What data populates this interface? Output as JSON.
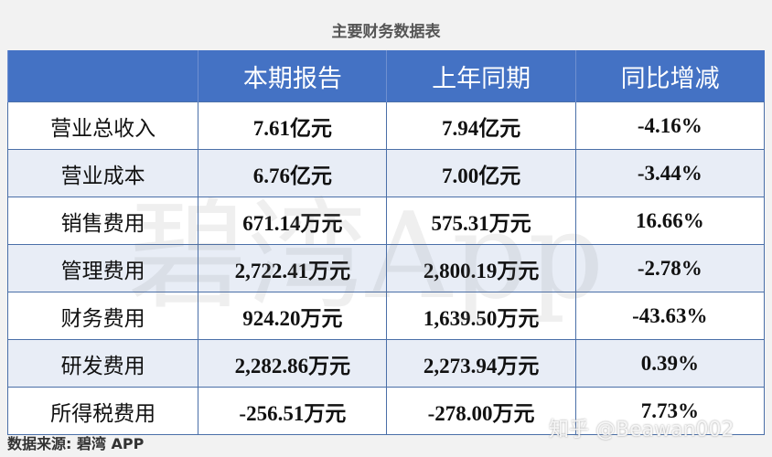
{
  "title": "主要财务数据表",
  "watermark": "碧湾App",
  "table": {
    "headers": [
      "",
      "本期报告",
      "上年同期",
      "同比增减"
    ],
    "rows": [
      [
        "营业总收入",
        "7.61亿元",
        "7.94亿元",
        "-4.16%"
      ],
      [
        "营业成本",
        "6.76亿元",
        "7.00亿元",
        "-3.44%"
      ],
      [
        "销售费用",
        "671.14万元",
        "575.31万元",
        "16.66%"
      ],
      [
        "管理费用",
        "2,722.41万元",
        "2,800.19万元",
        "-2.78%"
      ],
      [
        "财务费用",
        "924.20万元",
        "1,639.50万元",
        "-43.63%"
      ],
      [
        "研发费用",
        "2,282.86万元",
        "2,273.94万元",
        "0.39%"
      ],
      [
        "所得税费用",
        "-256.51万元",
        "-278.00万元",
        "7.73%"
      ]
    ]
  },
  "source": "数据来源: 碧湾 APP",
  "credit": "知乎 @Beawan002",
  "colors": {
    "header_bg": "#4472c4",
    "alt_row": "#e8edf6",
    "page_bg": "#f2f2f2"
  }
}
